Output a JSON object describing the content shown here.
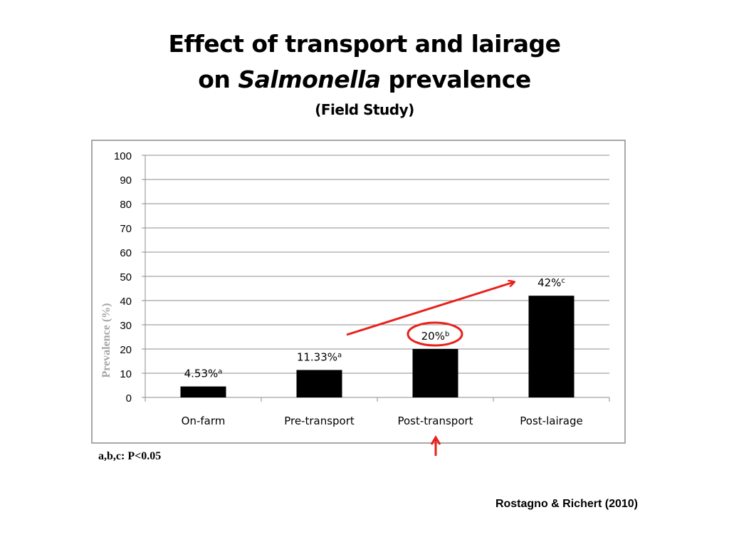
{
  "slide": {
    "title_line1": "Effect of transport and lairage",
    "title_line2_prefix": "on ",
    "title_line2_italic": "Salmonella",
    "title_line2_suffix": " prevalence",
    "subtitle": "(Field Study)",
    "significance_note": "a,b,c: P<0.05",
    "source": "Rostagno & Richert (2010)"
  },
  "chart_data": {
    "type": "bar",
    "categories": [
      "On-farm",
      "Pre-transport",
      "Post-transport",
      "Post-lairage"
    ],
    "values": [
      4.53,
      11.33,
      20,
      42
    ],
    "data_labels": [
      {
        "value": "4.53%",
        "sup": "a"
      },
      {
        "value": "11.33%",
        "sup": "a"
      },
      {
        "value": "20%",
        "sup": "b"
      },
      {
        "value": "42%",
        "sup": "c"
      }
    ],
    "ylabel": "Prevalence (%)",
    "ylim": [
      0,
      100
    ],
    "yticks": [
      0,
      10,
      20,
      30,
      40,
      50,
      60,
      70,
      80,
      90,
      100
    ],
    "grid": true,
    "bar_color": "#000000",
    "highlight": {
      "circled_label": "Post-transport",
      "arrow_from": "Pre-transport",
      "arrow_to": "Post-lairage",
      "color": "#e8211c"
    }
  }
}
